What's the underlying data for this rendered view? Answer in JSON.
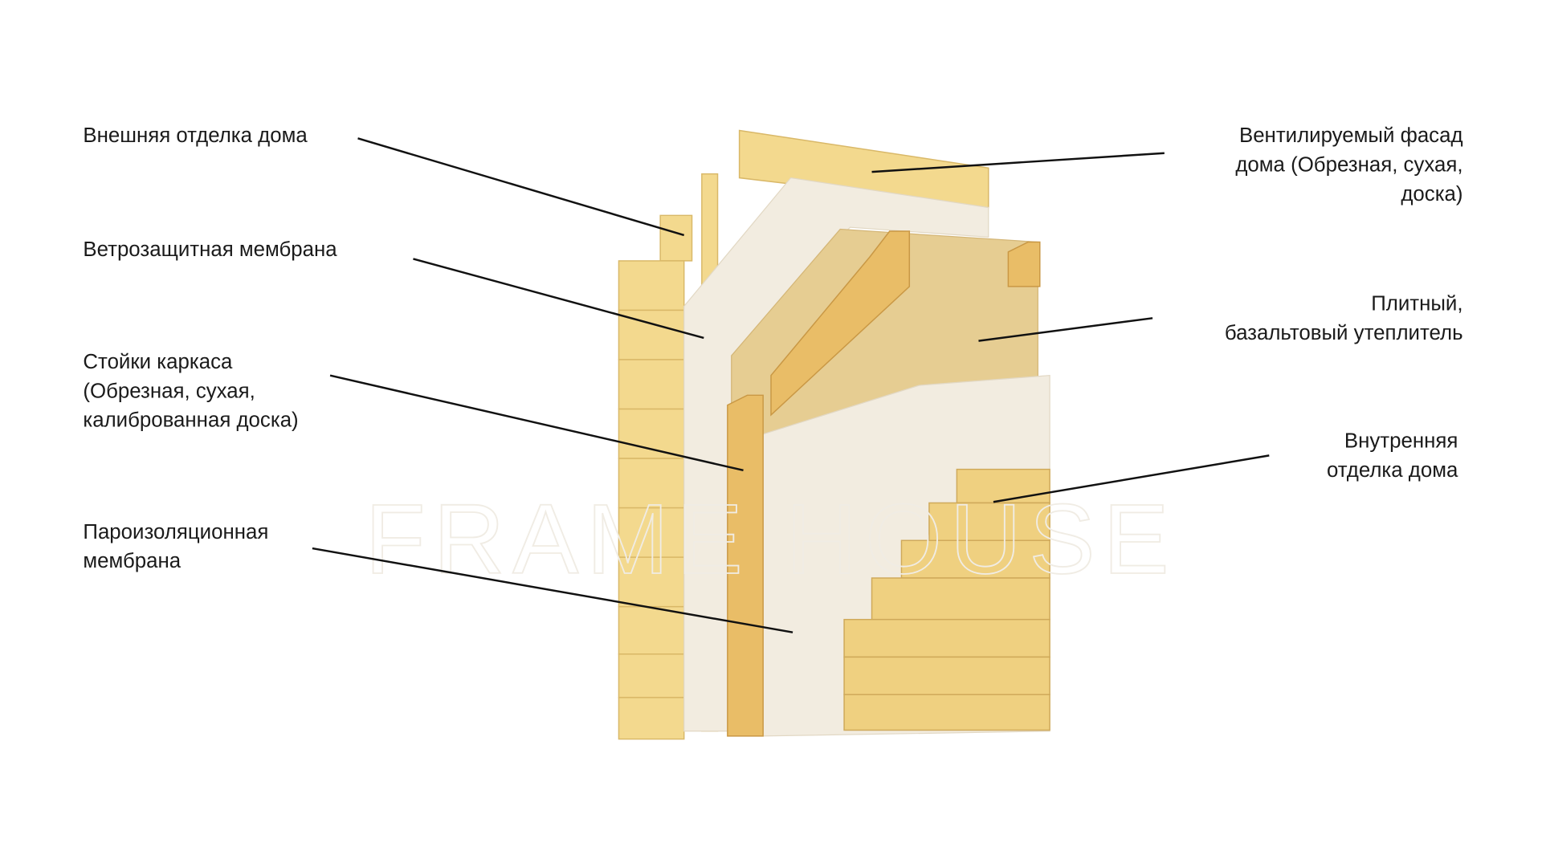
{
  "watermark": "FRAME HOUSE",
  "labels": [
    {
      "lines": [
        "Внешняя отделка дома"
      ]
    },
    {
      "lines": [
        "Ветрозащитная мембрана"
      ]
    },
    {
      "lines": [
        "Стойки каркаса",
        "(Обрезная, сухая,",
        "калиброванная доска)"
      ]
    },
    {
      "lines": [
        "Пароизоляционная",
        "мембрана"
      ]
    },
    {
      "lines": [
        "Вентилируемый фасад",
        "дома (Обрезная, сухая,",
        "доска)"
      ]
    },
    {
      "lines": [
        "Плитный,",
        "базальтовый утеплитель"
      ]
    },
    {
      "lines": [
        "Внутренняя",
        "отделка дома"
      ]
    }
  ]
}
